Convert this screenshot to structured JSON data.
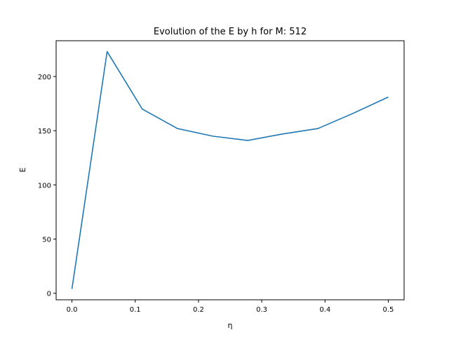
{
  "chart_data": {
    "type": "line",
    "title": "Evolution of the E by h for M: 512",
    "xlabel": "η",
    "ylabel": "E",
    "xlim": [
      -0.025,
      0.525
    ],
    "ylim": [
      -6,
      233
    ],
    "xticks": [
      0.0,
      0.1,
      0.2,
      0.3,
      0.4,
      0.5
    ],
    "xtick_labels": [
      "0.0",
      "0.1",
      "0.2",
      "0.3",
      "0.4",
      "0.5"
    ],
    "yticks": [
      0,
      50,
      100,
      150,
      200
    ],
    "ytick_labels": [
      "0",
      "50",
      "100",
      "150",
      "200"
    ],
    "grid": false,
    "series": [
      {
        "color": "#1f77b4",
        "x": [
          0.0,
          0.0556,
          0.1111,
          0.1667,
          0.2222,
          0.2778,
          0.3333,
          0.3889,
          0.4444,
          0.5
        ],
        "y": [
          4,
          223,
          170,
          152,
          145,
          141,
          147,
          152,
          166,
          181
        ]
      }
    ]
  }
}
